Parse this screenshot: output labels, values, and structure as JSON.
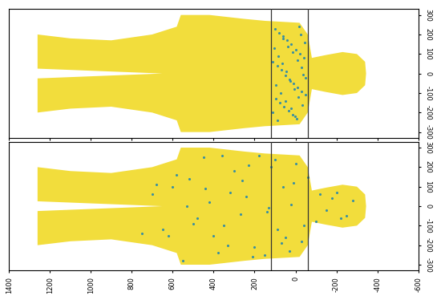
{
  "chart_data": [
    {
      "type": "scatter",
      "x": [
        100,
        80,
        60,
        40,
        20,
        0,
        -20,
        -40,
        110,
        90,
        70,
        50,
        30,
        10,
        -10,
        -30,
        -50,
        95,
        75,
        55,
        35,
        15,
        -5,
        -25,
        -45,
        105,
        85,
        65,
        45,
        25,
        5,
        -15,
        -35,
        112,
        88,
        62,
        38,
        12,
        -8,
        -28,
        -48,
        98,
        72,
        48,
        22,
        2,
        -18,
        -38
      ],
      "values": [
        230,
        210,
        190,
        170,
        150,
        120,
        100,
        80,
        60,
        40,
        20,
        -10,
        -30,
        -50,
        -70,
        -90,
        -110,
        -130,
        -150,
        -170,
        -190,
        -210,
        -230,
        200,
        160,
        130,
        90,
        50,
        10,
        -40,
        -80,
        -120,
        -160,
        -200,
        -240,
        180,
        140,
        110,
        70,
        30,
        -20,
        -60,
        -100,
        -140,
        -180,
        -220,
        240,
        -5
      ],
      "color": "#3a8fa0",
      "xlim": [
        1400,
        -600
      ],
      "ylim": [
        -330,
        330
      ],
      "xticks": [
        1400,
        1200,
        1000,
        800,
        600,
        400,
        200,
        0,
        -200,
        -400,
        -600
      ],
      "yticks": [
        -300,
        -200,
        -100,
        0,
        100,
        200,
        300
      ],
      "slab": [
        120,
        -60
      ],
      "tick_labels": "y"
    },
    {
      "type": "scatter",
      "x": [
        -280,
        -250,
        -200,
        -150,
        -120,
        -100,
        -60,
        -30,
        0,
        30,
        60,
        90,
        120,
        150,
        180,
        210,
        240,
        270,
        300,
        330,
        360,
        400,
        440,
        480,
        520,
        550,
        600,
        650,
        700,
        750,
        -220,
        -180,
        -40,
        10,
        50,
        100,
        140,
        200,
        260,
        320,
        380,
        450,
        500,
        580,
        620,
        680,
        20,
        70,
        130,
        230,
        350,
        420,
        530
      ],
      "values": [
        30,
        -50,
        70,
        -20,
        60,
        -80,
        150,
        -180,
        220,
        -230,
        100,
        -120,
        200,
        -250,
        260,
        -260,
        50,
        -40,
        180,
        -200,
        260,
        -150,
        90,
        -60,
        140,
        -280,
        100,
        -120,
        60,
        -140,
        -60,
        40,
        -100,
        120,
        -160,
        240,
        -30,
        -210,
        130,
        70,
        -240,
        250,
        -90,
        160,
        -150,
        110,
        10,
        -190,
        -10,
        210,
        -100,
        20,
        0
      ],
      "color": "#3a8fa0",
      "xlim": [
        1400,
        -600
      ],
      "ylim": [
        -330,
        330
      ],
      "xticks": [
        1400,
        1200,
        1000,
        800,
        600,
        400,
        200,
        0,
        -200,
        -400,
        -600
      ],
      "yticks": [
        -300,
        -200,
        -100,
        0,
        100,
        200,
        300
      ],
      "slab": [
        120,
        -60
      ],
      "tick_labels": true
    }
  ]
}
